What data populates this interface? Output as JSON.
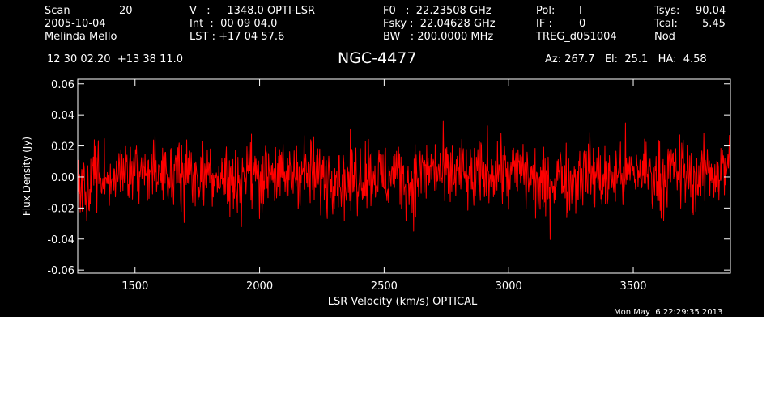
{
  "header": {
    "scan_label": "Scan",
    "scan_value": "20",
    "date": "2005-10-04",
    "observer": "Melinda Mello",
    "v_line": "V   :     1348.0 OPTI-LSR",
    "int_line": "Int  :  00 09 04.0",
    "lst_line": "LST : +17 04 57.6",
    "f0_line": "F0   :  22.23508 GHz",
    "fsky_line": "Fsky :  22.04628 GHz",
    "bw_line": "BW   : 200.0000 MHz",
    "pol_label": "Pol:",
    "pol_value": "I",
    "if_label": "IF :",
    "if_value": "0",
    "treg": "TREG_d051004",
    "tsys_label": "Tsys:",
    "tsys_value": "90.04",
    "tcal_label": "Tcal:",
    "tcal_value": "5.45",
    "nod": "Nod",
    "coords": "12 30 02.20  +13 38 11.0",
    "azelha": "Az: 267.7   El:  25.1   HA:  4.58"
  },
  "footer": {
    "timestamp": "Mon May  6 22:29:35 2013"
  },
  "colors": {
    "background": "#000000",
    "axes": "#ffffff",
    "trace": "#ff0000"
  },
  "chart_data": {
    "type": "line",
    "title": "NGC-4477",
    "xlabel": "LSR Velocity (km/s) OPTICAL",
    "ylabel": "Flux Density (Jy)",
    "xlim": [
      1270,
      3890
    ],
    "ylim": [
      -0.062,
      0.063
    ],
    "x_ticks": [
      1500,
      2000,
      2500,
      3000,
      3500
    ],
    "x_tick_labels": [
      "1500",
      "2000",
      "2500",
      "3000",
      "3500"
    ],
    "y_ticks": [
      -0.06,
      -0.04,
      -0.02,
      0.0,
      0.02,
      0.04,
      0.06
    ],
    "y_tick_labels": [
      "-0.06",
      "-0.04",
      "-0.02",
      "0.00",
      "0.02",
      "0.04",
      "0.06"
    ],
    "grid": false,
    "series": [
      {
        "color": "#ff0000",
        "x": [
          1270,
          1300,
          1350,
          1400,
          1450,
          1500,
          1550,
          1600,
          1650,
          1700,
          1750,
          1800,
          1850,
          1900,
          1950,
          2000,
          2050,
          2100,
          2150,
          2200,
          2250,
          2300,
          2350,
          2400,
          2450,
          2500,
          2550,
          2600,
          2650,
          2700,
          2750,
          2800,
          2850,
          2900,
          2950,
          3000,
          3050,
          3100,
          3150,
          3200,
          3250,
          3300,
          3350,
          3400,
          3450,
          3500,
          3550,
          3600,
          3650,
          3700,
          3750,
          3800,
          3850,
          3890
        ],
        "y": [
          -0.01,
          -0.006,
          0.004,
          -0.005,
          0.006,
          0.002,
          0.005,
          -0.004,
          0.003,
          0.006,
          -0.002,
          0.005,
          0.001,
          -0.006,
          0.004,
          0.0,
          0.006,
          -0.003,
          0.005,
          0.002,
          -0.001,
          0.003,
          -0.004,
          0.001,
          0.004,
          -0.002,
          0.003,
          -0.005,
          0.002,
          0.005,
          0.0,
          0.004,
          -0.003,
          0.002,
          0.006,
          0.001,
          0.004,
          -0.003,
          -0.008,
          0.003,
          -0.004,
          0.005,
          0.001,
          -0.003,
          0.003,
          0.002,
          0.005,
          -0.002,
          0.004,
          0.003,
          -0.001,
          0.004,
          0.003,
          0.006
        ]
      }
    ]
  }
}
